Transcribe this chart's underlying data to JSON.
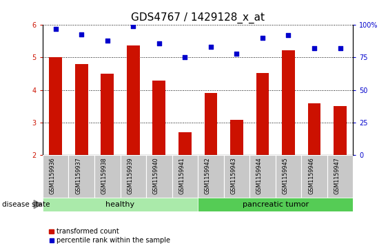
{
  "title": "GDS4767 / 1429128_x_at",
  "samples": [
    "GSM1159936",
    "GSM1159937",
    "GSM1159938",
    "GSM1159939",
    "GSM1159940",
    "GSM1159941",
    "GSM1159942",
    "GSM1159943",
    "GSM1159944",
    "GSM1159945",
    "GSM1159946",
    "GSM1159947"
  ],
  "transformed_count": [
    5.0,
    4.8,
    4.5,
    5.38,
    4.3,
    2.7,
    3.9,
    3.08,
    4.52,
    5.22,
    3.6,
    3.5
  ],
  "percentile_rank": [
    97,
    93,
    88,
    99,
    86,
    75,
    83,
    78,
    90,
    92,
    82,
    82
  ],
  "bar_color": "#cc1100",
  "dot_color": "#0000cc",
  "ylim_left": [
    2,
    6
  ],
  "ylim_right": [
    0,
    100
  ],
  "yticks_left": [
    2,
    3,
    4,
    5,
    6
  ],
  "yticks_right": [
    0,
    25,
    50,
    75,
    100
  ],
  "yticklabels_right": [
    "0",
    "25",
    "50",
    "75",
    "100%"
  ],
  "grid_color": "black",
  "xticklabel_bg": "#c8c8c8",
  "group1_label": "healthy",
  "group2_label": "pancreatic tumor",
  "group1_color": "#aaeaaa",
  "group2_color": "#55cc55",
  "group1_count": 6,
  "group2_count": 6,
  "disease_state_label": "disease state",
  "legend_bar_label": "transformed count",
  "legend_dot_label": "percentile rank within the sample",
  "title_fontsize": 11,
  "tick_fontsize": 7,
  "bar_width": 0.5
}
